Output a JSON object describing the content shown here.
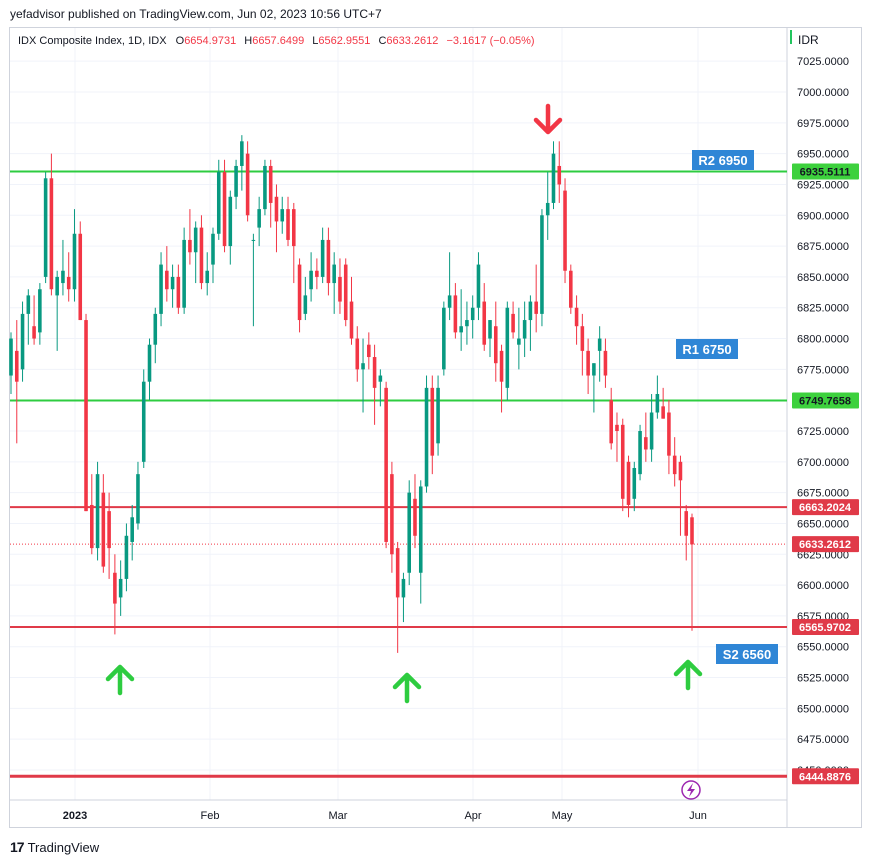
{
  "header": {
    "publisher_text": "yefadvisor published on TradingView.com, Jun 02, 2023 10:56 UTC+7"
  },
  "legend": {
    "symbol": "IDX Composite Index, 1D, IDX",
    "o_label": "O",
    "o_value": "6654.9731",
    "h_label": "H",
    "h_value": "6657.6499",
    "l_label": "L",
    "l_value": "6562.9551",
    "c_label": "C",
    "c_value": "6633.2612",
    "change": "−3.1617 (−0.05%)"
  },
  "currency": "IDR",
  "footer": {
    "brand": "TradingView",
    "logo_text": "17"
  },
  "colors": {
    "up": "#089981",
    "down": "#f23645",
    "support_resistance_green": "#2ecc40",
    "level_red": "#e03a48",
    "label_blue": "#2f86d6",
    "label_green_bg": "#3dd13d",
    "arrow_green": "#2ecc40",
    "arrow_red": "#f23645"
  },
  "chart_data": {
    "type": "candlestick",
    "title": "IDX Composite Index, 1D, IDX",
    "y_axis": {
      "ticks": [
        "7025.0000",
        "7000.0000",
        "6975.0000",
        "6950.0000",
        "6925.0000",
        "6900.0000",
        "6875.0000",
        "6850.0000",
        "6825.0000",
        "6800.0000",
        "6775.0000",
        "6750.0000",
        "6725.0000",
        "6700.0000",
        "6675.0000",
        "6650.0000",
        "6625.0000",
        "6600.0000",
        "6575.0000",
        "6550.0000",
        "6525.0000",
        "6500.0000",
        "6475.0000",
        "6450.0000"
      ],
      "range": [
        6420,
        7045
      ]
    },
    "x_axis": {
      "ticks": [
        "2023",
        "Feb",
        "Mar",
        "Apr",
        "May",
        "Jun"
      ]
    },
    "grid": true,
    "horizontal_levels": [
      {
        "price": 6935.5111,
        "label": "6935.5111",
        "color": "green",
        "tag": "R2 6950"
      },
      {
        "price": 6749.7658,
        "label": "6749.7658",
        "color": "green",
        "tag": "R1 6750"
      },
      {
        "price": 6663.2024,
        "label": "6663.2024",
        "color": "red",
        "tag": ""
      },
      {
        "price": 6565.9702,
        "label": "6565.9702",
        "color": "red",
        "tag": "S2 6560"
      },
      {
        "price": 6444.8876,
        "label": "6444.8876",
        "color": "red",
        "tag": ""
      }
    ],
    "current_price": {
      "price": 6633.2612,
      "label": "6633.2612"
    },
    "annotations": [
      "R2 6950",
      "R1 6750",
      "S2 6560"
    ],
    "arrows": [
      {
        "direction": "down",
        "color": "red",
        "near": "Apr peak"
      },
      {
        "direction": "up",
        "color": "green",
        "near": "Jan low"
      },
      {
        "direction": "up",
        "color": "green",
        "near": "Mar low"
      },
      {
        "direction": "up",
        "color": "green",
        "near": "Jun"
      }
    ],
    "candles": [
      {
        "o": 6770,
        "h": 6805,
        "l": 6755,
        "c": 6800
      },
      {
        "o": 6790,
        "h": 6815,
        "l": 6715,
        "c": 6765
      },
      {
        "o": 6775,
        "h": 6830,
        "l": 6765,
        "c": 6820
      },
      {
        "o": 6820,
        "h": 6840,
        "l": 6795,
        "c": 6835
      },
      {
        "o": 6810,
        "h": 6835,
        "l": 6795,
        "c": 6800
      },
      {
        "o": 6805,
        "h": 6845,
        "l": 6795,
        "c": 6840
      },
      {
        "o": 6850,
        "h": 6935,
        "l": 6845,
        "c": 6930
      },
      {
        "o": 6930,
        "h": 6950,
        "l": 6835,
        "c": 6840
      },
      {
        "o": 6835,
        "h": 6855,
        "l": 6790,
        "c": 6850
      },
      {
        "o": 6845,
        "h": 6880,
        "l": 6835,
        "c": 6855
      },
      {
        "o": 6850,
        "h": 6870,
        "l": 6830,
        "c": 6840
      },
      {
        "o": 6840,
        "h": 6905,
        "l": 6830,
        "c": 6885
      },
      {
        "o": 6885,
        "h": 6895,
        "l": 6815,
        "c": 6815
      },
      {
        "o": 6815,
        "h": 6820,
        "l": 6660,
        "c": 6660
      },
      {
        "o": 6665,
        "h": 6690,
        "l": 6625,
        "c": 6630
      },
      {
        "o": 6630,
        "h": 6700,
        "l": 6620,
        "c": 6690
      },
      {
        "o": 6675,
        "h": 6690,
        "l": 6610,
        "c": 6615
      },
      {
        "o": 6660,
        "h": 6675,
        "l": 6605,
        "c": 6630
      },
      {
        "o": 6610,
        "h": 6625,
        "l": 6560,
        "c": 6585
      },
      {
        "o": 6590,
        "h": 6620,
        "l": 6575,
        "c": 6605
      },
      {
        "o": 6605,
        "h": 6650,
        "l": 6595,
        "c": 6640
      },
      {
        "o": 6635,
        "h": 6665,
        "l": 6620,
        "c": 6655
      },
      {
        "o": 6650,
        "h": 6700,
        "l": 6645,
        "c": 6690
      },
      {
        "o": 6700,
        "h": 6775,
        "l": 6695,
        "c": 6765
      },
      {
        "o": 6765,
        "h": 6800,
        "l": 6750,
        "c": 6795
      },
      {
        "o": 6795,
        "h": 6825,
        "l": 6780,
        "c": 6820
      },
      {
        "o": 6820,
        "h": 6870,
        "l": 6810,
        "c": 6860
      },
      {
        "o": 6855,
        "h": 6875,
        "l": 6830,
        "c": 6840
      },
      {
        "o": 6840,
        "h": 6860,
        "l": 6825,
        "c": 6850
      },
      {
        "o": 6850,
        "h": 6860,
        "l": 6820,
        "c": 6825
      },
      {
        "o": 6825,
        "h": 6890,
        "l": 6820,
        "c": 6880
      },
      {
        "o": 6880,
        "h": 6905,
        "l": 6860,
        "c": 6870
      },
      {
        "o": 6870,
        "h": 6895,
        "l": 6845,
        "c": 6890
      },
      {
        "o": 6890,
        "h": 6900,
        "l": 6840,
        "c": 6845
      },
      {
        "o": 6845,
        "h": 6870,
        "l": 6835,
        "c": 6855
      },
      {
        "o": 6860,
        "h": 6890,
        "l": 6845,
        "c": 6885
      },
      {
        "o": 6885,
        "h": 6945,
        "l": 6880,
        "c": 6935
      },
      {
        "o": 6935,
        "h": 6945,
        "l": 6870,
        "c": 6875
      },
      {
        "o": 6875,
        "h": 6920,
        "l": 6860,
        "c": 6915
      },
      {
        "o": 6915,
        "h": 6945,
        "l": 6905,
        "c": 6940
      },
      {
        "o": 6940,
        "h": 6965,
        "l": 6920,
        "c": 6960
      },
      {
        "o": 6950,
        "h": 6960,
        "l": 6895,
        "c": 6900
      },
      {
        "o": 6880,
        "h": 6885,
        "l": 6810,
        "c": 6880
      },
      {
        "o": 6890,
        "h": 6915,
        "l": 6875,
        "c": 6905
      },
      {
        "o": 6905,
        "h": 6945,
        "l": 6900,
        "c": 6940
      },
      {
        "o": 6940,
        "h": 6945,
        "l": 6890,
        "c": 6910
      },
      {
        "o": 6915,
        "h": 6925,
        "l": 6870,
        "c": 6895
      },
      {
        "o": 6895,
        "h": 6915,
        "l": 6885,
        "c": 6905
      },
      {
        "o": 6905,
        "h": 6915,
        "l": 6875,
        "c": 6880
      },
      {
        "o": 6905,
        "h": 6910,
        "l": 6845,
        "c": 6875
      },
      {
        "o": 6860,
        "h": 6865,
        "l": 6805,
        "c": 6815
      },
      {
        "o": 6820,
        "h": 6850,
        "l": 6815,
        "c": 6835
      },
      {
        "o": 6840,
        "h": 6870,
        "l": 6830,
        "c": 6855
      },
      {
        "o": 6855,
        "h": 6865,
        "l": 6840,
        "c": 6850
      },
      {
        "o": 6850,
        "h": 6890,
        "l": 6845,
        "c": 6880
      },
      {
        "o": 6880,
        "h": 6890,
        "l": 6835,
        "c": 6845
      },
      {
        "o": 6845,
        "h": 6870,
        "l": 6820,
        "c": 6860
      },
      {
        "o": 6850,
        "h": 6865,
        "l": 6820,
        "c": 6830
      },
      {
        "o": 6860,
        "h": 6865,
        "l": 6810,
        "c": 6815
      },
      {
        "o": 6830,
        "h": 6850,
        "l": 6795,
        "c": 6800
      },
      {
        "o": 6800,
        "h": 6810,
        "l": 6765,
        "c": 6775
      },
      {
        "o": 6775,
        "h": 6800,
        "l": 6740,
        "c": 6780
      },
      {
        "o": 6795,
        "h": 6805,
        "l": 6775,
        "c": 6785
      },
      {
        "o": 6785,
        "h": 6795,
        "l": 6730,
        "c": 6760
      },
      {
        "o": 6765,
        "h": 6775,
        "l": 6745,
        "c": 6770
      },
      {
        "o": 6760,
        "h": 6765,
        "l": 6630,
        "c": 6635
      },
      {
        "o": 6690,
        "h": 6700,
        "l": 6610,
        "c": 6625
      },
      {
        "o": 6630,
        "h": 6635,
        "l": 6545,
        "c": 6590
      },
      {
        "o": 6590,
        "h": 6610,
        "l": 6570,
        "c": 6605
      },
      {
        "o": 6610,
        "h": 6685,
        "l": 6600,
        "c": 6675
      },
      {
        "o": 6670,
        "h": 6690,
        "l": 6630,
        "c": 6640
      },
      {
        "o": 6610,
        "h": 6685,
        "l": 6585,
        "c": 6680
      },
      {
        "o": 6680,
        "h": 6770,
        "l": 6675,
        "c": 6760
      },
      {
        "o": 6760,
        "h": 6770,
        "l": 6690,
        "c": 6705
      },
      {
        "o": 6715,
        "h": 6770,
        "l": 6705,
        "c": 6760
      },
      {
        "o": 6775,
        "h": 6830,
        "l": 6770,
        "c": 6825
      },
      {
        "o": 6825,
        "h": 6870,
        "l": 6815,
        "c": 6835
      },
      {
        "o": 6835,
        "h": 6845,
        "l": 6800,
        "c": 6805
      },
      {
        "o": 6805,
        "h": 6840,
        "l": 6790,
        "c": 6810
      },
      {
        "o": 6810,
        "h": 6830,
        "l": 6795,
        "c": 6815
      },
      {
        "o": 6815,
        "h": 6835,
        "l": 6800,
        "c": 6825
      },
      {
        "o": 6825,
        "h": 6870,
        "l": 6815,
        "c": 6860
      },
      {
        "o": 6830,
        "h": 6845,
        "l": 6790,
        "c": 6795
      },
      {
        "o": 6800,
        "h": 6815,
        "l": 6785,
        "c": 6815
      },
      {
        "o": 6810,
        "h": 6830,
        "l": 6765,
        "c": 6780
      },
      {
        "o": 6790,
        "h": 6795,
        "l": 6740,
        "c": 6765
      },
      {
        "o": 6760,
        "h": 6830,
        "l": 6750,
        "c": 6825
      },
      {
        "o": 6820,
        "h": 6830,
        "l": 6800,
        "c": 6805
      },
      {
        "o": 6795,
        "h": 6825,
        "l": 6775,
        "c": 6800
      },
      {
        "o": 6800,
        "h": 6830,
        "l": 6785,
        "c": 6815
      },
      {
        "o": 6815,
        "h": 6835,
        "l": 6790,
        "c": 6830
      },
      {
        "o": 6830,
        "h": 6860,
        "l": 6805,
        "c": 6820
      },
      {
        "o": 6820,
        "h": 6905,
        "l": 6810,
        "c": 6900
      },
      {
        "o": 6900,
        "h": 6935,
        "l": 6880,
        "c": 6910
      },
      {
        "o": 6910,
        "h": 6960,
        "l": 6905,
        "c": 6950
      },
      {
        "o": 6940,
        "h": 6960,
        "l": 6910,
        "c": 6925
      },
      {
        "o": 6920,
        "h": 6930,
        "l": 6845,
        "c": 6855
      },
      {
        "o": 6855,
        "h": 6860,
        "l": 6820,
        "c": 6825
      },
      {
        "o": 6825,
        "h": 6835,
        "l": 6795,
        "c": 6810
      },
      {
        "o": 6810,
        "h": 6820,
        "l": 6770,
        "c": 6790
      },
      {
        "o": 6790,
        "h": 6800,
        "l": 6755,
        "c": 6770
      },
      {
        "o": 6770,
        "h": 6780,
        "l": 6740,
        "c": 6780
      },
      {
        "o": 6790,
        "h": 6810,
        "l": 6765,
        "c": 6800
      },
      {
        "o": 6790,
        "h": 6800,
        "l": 6760,
        "c": 6770
      },
      {
        "o": 6750,
        "h": 6760,
        "l": 6710,
        "c": 6715
      },
      {
        "o": 6730,
        "h": 6740,
        "l": 6700,
        "c": 6725
      },
      {
        "o": 6730,
        "h": 6735,
        "l": 6660,
        "c": 6670
      },
      {
        "o": 6700,
        "h": 6705,
        "l": 6655,
        "c": 6665
      },
      {
        "o": 6670,
        "h": 6700,
        "l": 6660,
        "c": 6695
      },
      {
        "o": 6690,
        "h": 6730,
        "l": 6685,
        "c": 6725
      },
      {
        "o": 6720,
        "h": 6740,
        "l": 6700,
        "c": 6710
      },
      {
        "o": 6710,
        "h": 6755,
        "l": 6700,
        "c": 6740
      },
      {
        "o": 6740,
        "h": 6770,
        "l": 6735,
        "c": 6755
      },
      {
        "o": 6745,
        "h": 6760,
        "l": 6735,
        "c": 6735
      },
      {
        "o": 6740,
        "h": 6750,
        "l": 6690,
        "c": 6705
      },
      {
        "o": 6705,
        "h": 6720,
        "l": 6680,
        "c": 6690
      },
      {
        "o": 6700,
        "h": 6705,
        "l": 6640,
        "c": 6685
      },
      {
        "o": 6660,
        "h": 6665,
        "l": 6620,
        "c": 6640
      },
      {
        "o": 6655,
        "h": 6658,
        "l": 6563,
        "c": 6633
      }
    ]
  }
}
